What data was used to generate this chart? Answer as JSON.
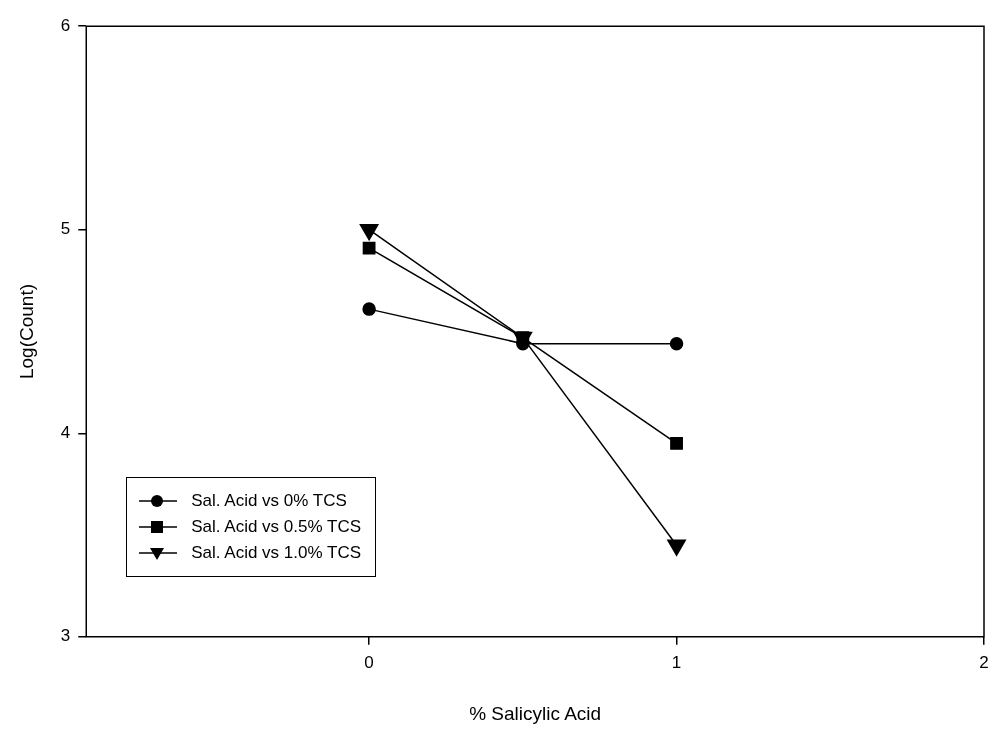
{
  "chart_data": {
    "type": "line",
    "xlabel": "% Salicylic Acid",
    "ylabel": "Log(Count)",
    "x": [
      0,
      0.5,
      1
    ],
    "xlim": [
      -0.92,
      2
    ],
    "xticks": [
      0,
      1,
      2
    ],
    "ylim": [
      3,
      6
    ],
    "yticks": [
      3,
      4,
      5,
      6
    ],
    "grid": false,
    "legend": "bottom left",
    "series": [
      {
        "name": "Sal. Acid vs 0% TCS",
        "color": "#000000",
        "marker": "circle",
        "values": [
          4.61,
          4.44,
          4.44
        ]
      },
      {
        "name": "Sal. Acid vs 0.5% TCS",
        "color": "#000000",
        "marker": "square",
        "values": [
          4.91,
          4.47,
          3.95
        ]
      },
      {
        "name": "Sal. Acid vs 1.0% TCS",
        "color": "#000000",
        "marker": "triangle",
        "values": [
          5.0,
          4.47,
          3.45
        ]
      }
    ]
  }
}
